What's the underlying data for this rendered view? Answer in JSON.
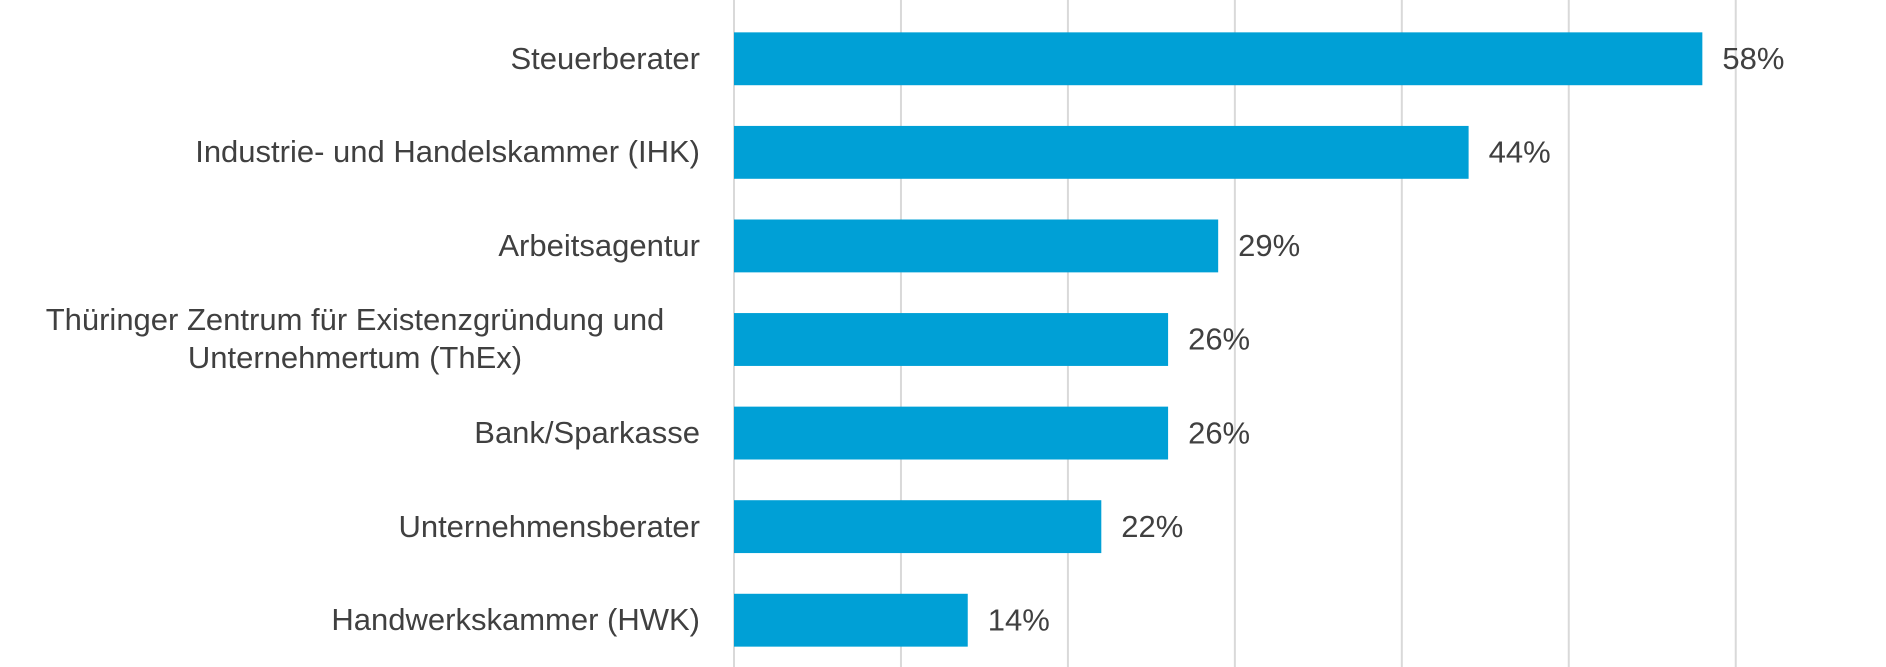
{
  "chart_data": {
    "type": "bar",
    "orientation": "horizontal",
    "categories": [
      "Steuerberater",
      "Industrie- und Handelskammer (IHK)",
      "Arbeitsagentur",
      "Thüringer Zentrum für Existenzgründung und Unternehmertum (ThEx)",
      "Bank/Sparkasse",
      "Unternehmensberater",
      "Handwerkskammer (HWK)"
    ],
    "values": [
      58,
      44,
      29,
      26,
      26,
      22,
      14
    ],
    "value_labels": [
      "58%",
      "44%",
      "29%",
      "26%",
      "26%",
      "22%",
      "14%"
    ],
    "color": "#00a0d6",
    "xlim": [
      0,
      69
    ],
    "xticks": [
      0,
      10,
      20,
      30,
      40,
      50,
      60
    ],
    "grid": true
  }
}
